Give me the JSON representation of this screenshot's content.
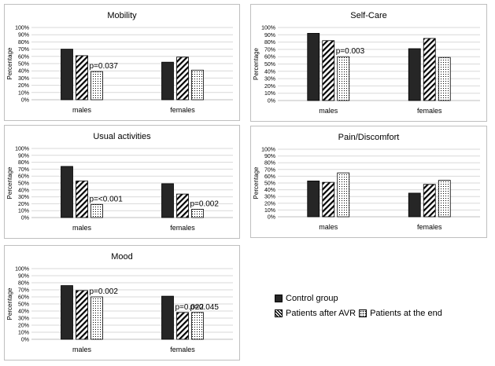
{
  "legend": {
    "control": "Control group",
    "after_avr": "Patients after AVR",
    "at_end": "Patients at the end"
  },
  "colors": {
    "control": "#262626",
    "border": "#bfbfbf",
    "grid": "#d9d9d9"
  },
  "chart_data": [
    {
      "type": "bar",
      "title": "Mobility",
      "ylabel": "Percentage",
      "ylim": [
        0,
        100
      ],
      "yticks": [
        "0%",
        "10%",
        "20%",
        "30%",
        "40%",
        "50%",
        "60%",
        "70%",
        "80%",
        "90%",
        "100%"
      ],
      "categories": [
        "males",
        "females"
      ],
      "series": [
        {
          "name": "Control group",
          "values": [
            70,
            52
          ]
        },
        {
          "name": "Patients after AVR",
          "values": [
            61,
            59
          ]
        },
        {
          "name": "Patients at the end",
          "values": [
            39,
            41
          ]
        }
      ],
      "annotations": [
        {
          "category": 0,
          "series": 2,
          "text": "p=0.037"
        }
      ]
    },
    {
      "type": "bar",
      "title": "Self-Care",
      "ylabel": "Percentage",
      "ylim": [
        0,
        100
      ],
      "yticks": [
        "0%",
        "10%",
        "20%",
        "30%",
        "40%",
        "50%",
        "60%",
        "70%",
        "80%",
        "90%",
        "100%"
      ],
      "categories": [
        "males",
        "females"
      ],
      "series": [
        {
          "name": "Control group",
          "values": [
            92,
            71
          ]
        },
        {
          "name": "Patients after AVR",
          "values": [
            82,
            85
          ]
        },
        {
          "name": "Patients at the end",
          "values": [
            60,
            59
          ]
        }
      ],
      "annotations": [
        {
          "category": 0,
          "series": 2,
          "text": "p=0.003"
        }
      ]
    },
    {
      "type": "bar",
      "title": "Usual activities",
      "ylabel": "Percentage",
      "ylim": [
        0,
        100
      ],
      "yticks": [
        "0%",
        "10%",
        "20%",
        "30%",
        "40%",
        "50%",
        "60%",
        "70%",
        "80%",
        "90%",
        "100%"
      ],
      "categories": [
        "males",
        "females"
      ],
      "series": [
        {
          "name": "Control group",
          "values": [
            74,
            49
          ]
        },
        {
          "name": "Patients after AVR",
          "values": [
            53,
            34
          ]
        },
        {
          "name": "Patients at the end",
          "values": [
            19,
            12
          ]
        }
      ],
      "annotations": [
        {
          "category": 0,
          "series": 2,
          "text": "p=<0.001"
        },
        {
          "category": 1,
          "series": 2,
          "text": "p=0.002"
        }
      ]
    },
    {
      "type": "bar",
      "title": "Pain/Discomfort",
      "ylabel": "Percentage",
      "ylim": [
        0,
        100
      ],
      "yticks": [
        "0%",
        "10%",
        "20%",
        "30%",
        "40%",
        "50%",
        "60%",
        "70%",
        "80%",
        "90%",
        "100%"
      ],
      "categories": [
        "males",
        "females"
      ],
      "series": [
        {
          "name": "Control group",
          "values": [
            53,
            35
          ]
        },
        {
          "name": "Patients after AVR",
          "values": [
            51,
            48
          ]
        },
        {
          "name": "Patients at the end",
          "values": [
            65,
            54
          ]
        }
      ],
      "annotations": []
    },
    {
      "type": "bar",
      "title": "Mood",
      "ylabel": "Percentage",
      "ylim": [
        0,
        100
      ],
      "yticks": [
        "0%",
        "10%",
        "20%",
        "30%",
        "40%",
        "50%",
        "60%",
        "70%",
        "80%",
        "90%",
        "100%"
      ],
      "categories": [
        "males",
        "females"
      ],
      "series": [
        {
          "name": "Control group",
          "values": [
            76,
            61
          ]
        },
        {
          "name": "Patients after AVR",
          "values": [
            69,
            38
          ]
        },
        {
          "name": "Patients at the end",
          "values": [
            60,
            38
          ]
        }
      ],
      "annotations": [
        {
          "category": 0,
          "series": 2,
          "text": "p=0.002"
        },
        {
          "category": 1,
          "series": 1,
          "text": "p=0.022"
        },
        {
          "category": 1,
          "series": 2,
          "text": "p=0.045"
        }
      ]
    }
  ]
}
